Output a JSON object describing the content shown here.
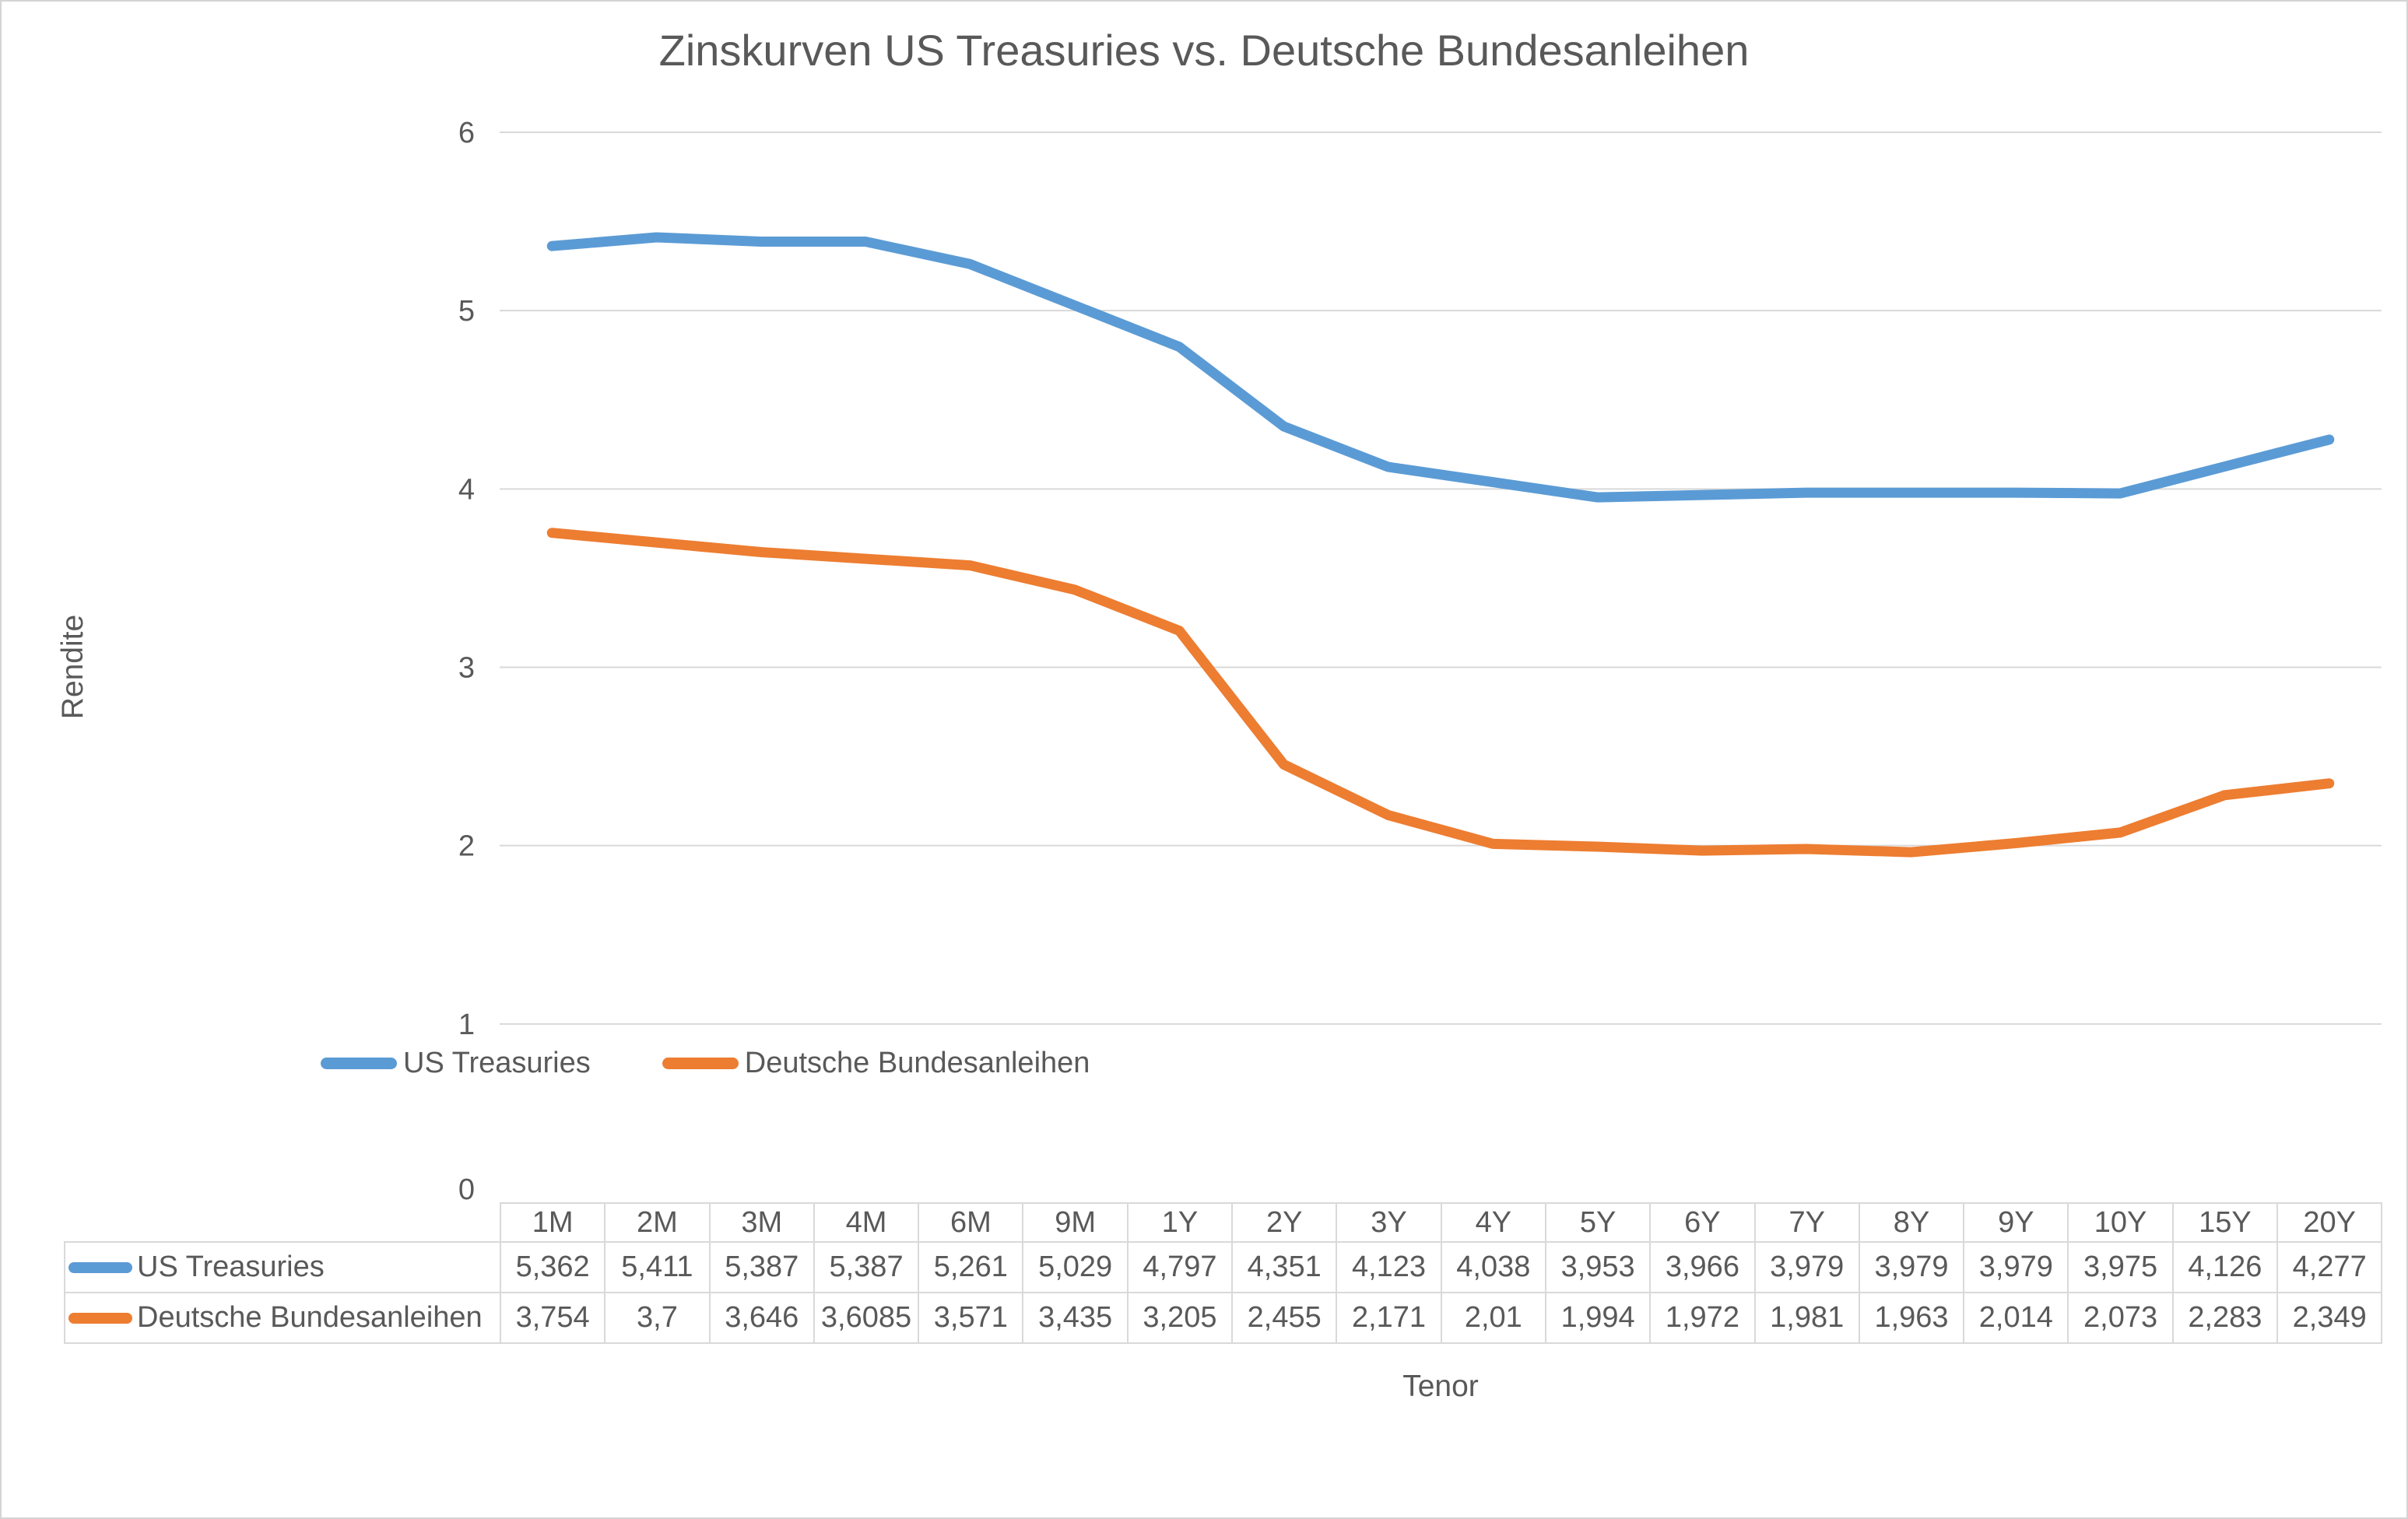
{
  "chart_data": {
    "type": "line",
    "title": "Zinskurven US Treasuries vs. Deutsche Bundesanleihen",
    "xlabel": "Tenor",
    "ylabel": "Rendite",
    "categories": [
      "1M",
      "2M",
      "3M",
      "4M",
      "6M",
      "9M",
      "1Y",
      "2Y",
      "3Y",
      "4Y",
      "5Y",
      "6Y",
      "7Y",
      "8Y",
      "9Y",
      "10Y",
      "15Y",
      "20Y"
    ],
    "series": [
      {
        "name": "US Treasuries",
        "color": "#5B9BD5",
        "values": [
          5.362,
          5.411,
          5.387,
          5.387,
          5.261,
          5.029,
          4.797,
          4.351,
          4.123,
          4.038,
          3.953,
          3.966,
          3.979,
          3.979,
          3.979,
          3.975,
          4.126,
          4.277
        ],
        "display_values": [
          "5,362",
          "5,411",
          "5,387",
          "5,387",
          "5,261",
          "5,029",
          "4,797",
          "4,351",
          "4,123",
          "4,038",
          "3,953",
          "3,966",
          "3,979",
          "3,979",
          "3,979",
          "3,975",
          "4,126",
          "4,277"
        ]
      },
      {
        "name": "Deutsche Bundesanleihen",
        "color": "#ED7D31",
        "values": [
          3.754,
          3.7,
          3.646,
          3.6085,
          3.571,
          3.435,
          3.205,
          2.455,
          2.171,
          2.01,
          1.994,
          1.972,
          1.981,
          1.963,
          2.014,
          2.073,
          2.283,
          2.349
        ],
        "display_values": [
          "3,754",
          "3,7",
          "3,646",
          "3,6085",
          "3,571",
          "3,435",
          "3,205",
          "2,455",
          "2,171",
          "2,01",
          "1,994",
          "1,972",
          "1,981",
          "1,963",
          "2,014",
          "2,073",
          "2,283",
          "2,349"
        ]
      }
    ],
    "y_ticks": [
      0,
      1,
      2,
      3,
      4,
      5,
      6
    ],
    "ylim": [
      0,
      6
    ],
    "grid": true,
    "legend_position": "bottom-left",
    "data_table_visible": true,
    "colors": {
      "grid": "#d9d9d9",
      "text": "#595959",
      "table_border": "#d9d9d9"
    }
  }
}
